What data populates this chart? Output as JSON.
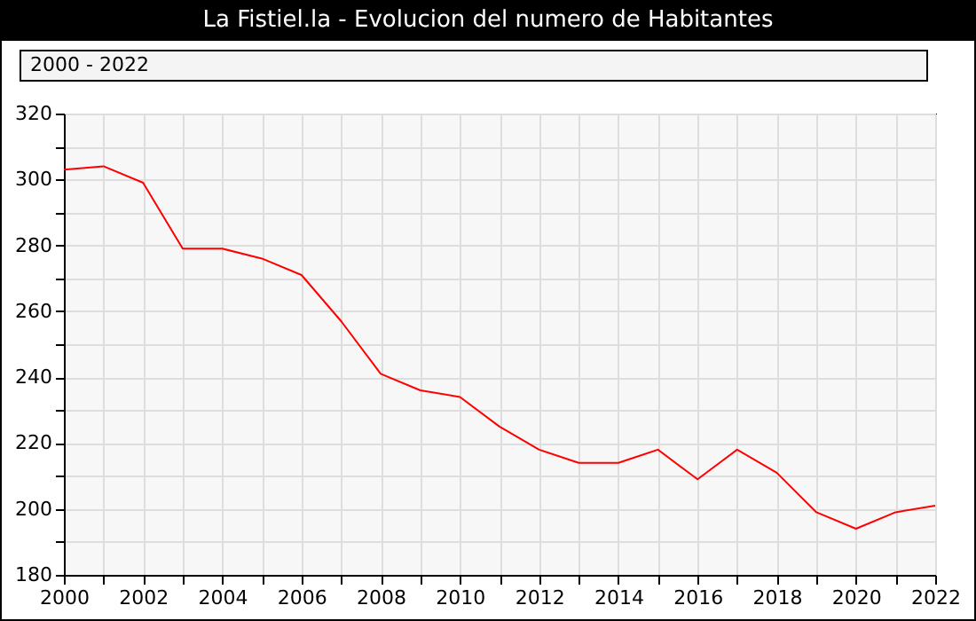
{
  "chart_data": {
    "type": "line",
    "title": "La Fistiel.la - Evolucion del numero de Habitantes",
    "subtitle": "2000 - 2022",
    "x": [
      2000,
      2001,
      2002,
      2003,
      2004,
      2005,
      2006,
      2007,
      2008,
      2009,
      2010,
      2011,
      2012,
      2013,
      2014,
      2015,
      2016,
      2017,
      2018,
      2019,
      2020,
      2021,
      2022
    ],
    "series": [
      {
        "color": "#ff0000",
        "values": [
          303,
          304,
          299,
          279,
          279,
          276,
          271,
          257,
          241,
          236,
          234,
          225,
          218,
          214,
          214,
          218,
          209,
          218,
          211,
          199,
          194,
          199,
          201
        ]
      }
    ],
    "xlim": [
      2000,
      2022
    ],
    "xticks": [
      2000,
      {
        "value": 2001,
        "label": null
      },
      2002,
      {
        "value": 2003,
        "label": null
      },
      2004,
      {
        "value": 2005,
        "label": null
      },
      2006,
      {
        "value": 2007,
        "label": null
      },
      2008,
      {
        "value": 2009,
        "label": null
      },
      2010,
      {
        "value": 2011,
        "label": null
      },
      2012,
      {
        "value": 2013,
        "label": null
      },
      2014,
      {
        "value": 2015,
        "label": null
      },
      2016,
      {
        "value": 2017,
        "label": null
      },
      2018,
      {
        "value": 2019,
        "label": null
      },
      2020,
      {
        "value": 2021,
        "label": null
      },
      2022
    ],
    "ylim": [
      180,
      320
    ],
    "yticks": [
      180,
      {
        "value": 190,
        "label": null
      },
      200,
      {
        "value": 210,
        "label": null
      },
      220,
      {
        "value": 230,
        "label": null
      },
      240,
      {
        "value": 250,
        "label": null
      },
      260,
      {
        "value": 270,
        "label": null
      },
      280,
      {
        "value": 290,
        "label": null
      },
      300,
      {
        "value": 310,
        "label": null
      },
      320
    ],
    "grid": true,
    "legend": false,
    "marker": "none",
    "line_style": "solid"
  }
}
